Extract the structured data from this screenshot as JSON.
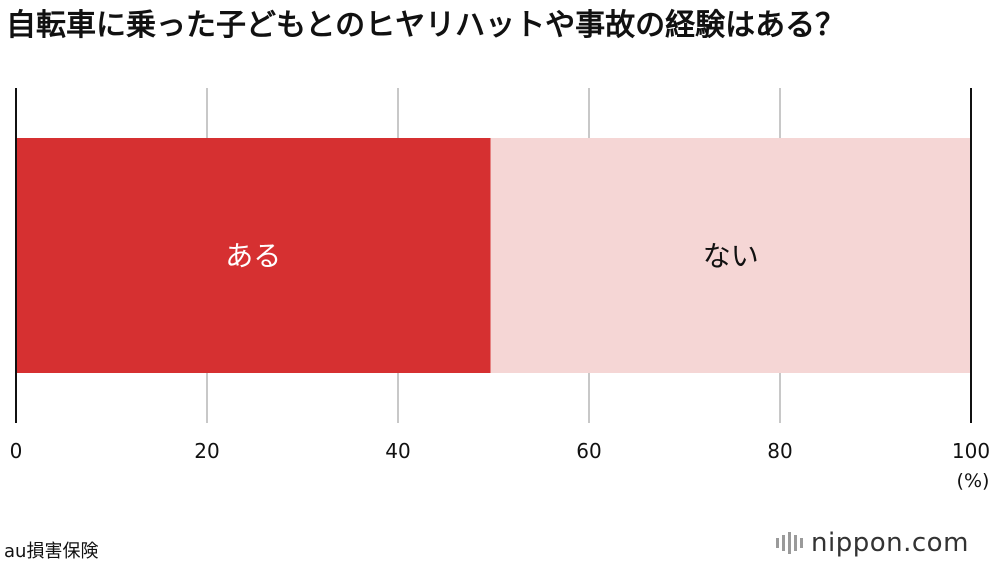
{
  "title": "自転車に乗った子どもとのヒヤリハットや事故の経験はある？",
  "source": "au損害保険",
  "logo": "nippon.com",
  "colors": {
    "aru": "#d63031",
    "nai": "#f5d6d5",
    "grid": "#c8c8c8",
    "axis": "#111111"
  },
  "chart_data": {
    "type": "bar",
    "orientation": "horizontal-stacked",
    "series": [
      {
        "name": "ある",
        "value": 49.7
      },
      {
        "name": "ない",
        "value": 50.3
      }
    ],
    "xlim": [
      0,
      100
    ],
    "xticks": [
      "0",
      "20",
      "40",
      "60",
      "80",
      "100"
    ],
    "xunit": "(%)",
    "grid": true
  }
}
